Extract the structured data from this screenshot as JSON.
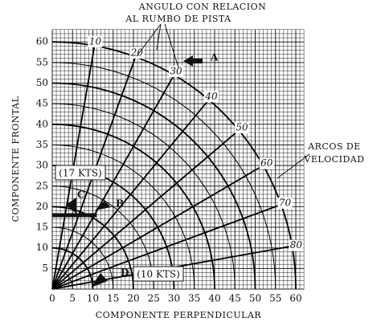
{
  "title": [
    "ANGULO CON RELACION",
    "AL RUMBO DE PISTA"
  ],
  "y_axis": {
    "label": "COMPONENTE FRONTAL",
    "ticks": [
      5,
      10,
      15,
      20,
      25,
      30,
      35,
      40,
      45,
      50,
      55,
      60
    ]
  },
  "x_axis": {
    "label": "COMPONENTE PERPENDICULAR",
    "ticks": [
      0,
      5,
      10,
      15,
      20,
      25,
      30,
      35,
      40,
      45,
      50,
      55,
      60
    ]
  },
  "angle_labels": [
    10,
    20,
    30,
    40,
    50,
    60,
    70,
    80
  ],
  "arcs_label": [
    "ARCOS DE",
    "VELOCIDAD"
  ],
  "points": [
    "A",
    "B",
    "C",
    "D"
  ],
  "annotations": [
    "(17 KTS)",
    "(10 KTS)"
  ]
}
